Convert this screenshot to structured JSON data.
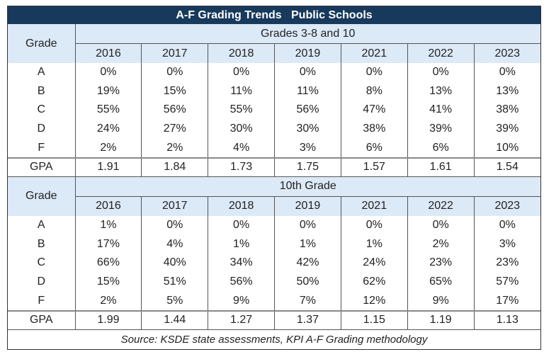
{
  "chart_data": {
    "type": "table",
    "title": "A-F Grading Trends   Public Schools",
    "row_header": "Grade",
    "years": [
      "2016",
      "2017",
      "2018",
      "2019",
      "2021",
      "2022",
      "2023"
    ],
    "sections": [
      {
        "label": "Grades 3-8 and 10",
        "rows": [
          {
            "grade": "A",
            "values": [
              "0%",
              "0%",
              "0%",
              "0%",
              "0%",
              "0%",
              "0%"
            ]
          },
          {
            "grade": "B",
            "values": [
              "19%",
              "15%",
              "11%",
              "11%",
              "8%",
              "13%",
              "13%"
            ]
          },
          {
            "grade": "C",
            "values": [
              "55%",
              "56%",
              "55%",
              "56%",
              "47%",
              "41%",
              "38%"
            ]
          },
          {
            "grade": "D",
            "values": [
              "24%",
              "27%",
              "30%",
              "30%",
              "38%",
              "39%",
              "39%"
            ]
          },
          {
            "grade": "F",
            "values": [
              "2%",
              "2%",
              "4%",
              "3%",
              "6%",
              "6%",
              "10%"
            ]
          }
        ],
        "gpa": {
          "label": "GPA",
          "values": [
            "1.91",
            "1.84",
            "1.73",
            "1.75",
            "1.57",
            "1.61",
            "1.54"
          ]
        }
      },
      {
        "label": "10th Grade",
        "rows": [
          {
            "grade": "A",
            "values": [
              "1%",
              "0%",
              "0%",
              "0%",
              "0%",
              "0%",
              "0%"
            ]
          },
          {
            "grade": "B",
            "values": [
              "17%",
              "4%",
              "1%",
              "1%",
              "1%",
              "2%",
              "3%"
            ]
          },
          {
            "grade": "C",
            "values": [
              "66%",
              "40%",
              "34%",
              "42%",
              "24%",
              "23%",
              "23%"
            ]
          },
          {
            "grade": "D",
            "values": [
              "15%",
              "51%",
              "56%",
              "50%",
              "62%",
              "65%",
              "57%"
            ]
          },
          {
            "grade": "F",
            "values": [
              "2%",
              "5%",
              "9%",
              "7%",
              "12%",
              "9%",
              "17%"
            ]
          }
        ],
        "gpa": {
          "label": "GPA",
          "values": [
            "1.99",
            "1.44",
            "1.27",
            "1.37",
            "1.15",
            "1.19",
            "1.13"
          ]
        }
      }
    ],
    "source": "Source: KSDE state assessments, KPI A-F Grading methodology",
    "colors": {
      "title_bg": "#17395c",
      "header_bg": "#dce9f7"
    }
  }
}
